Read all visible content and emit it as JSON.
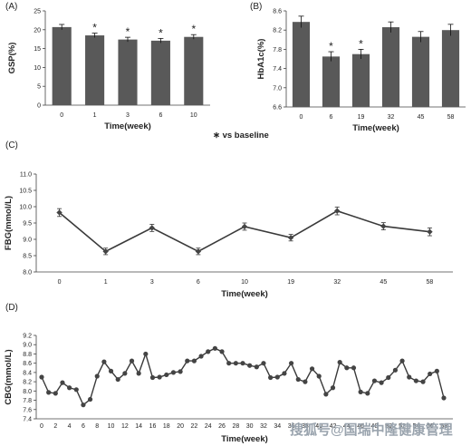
{
  "note": "∗ vs baseline",
  "watermark": "搜狐号@国瑞中隆健康管理",
  "chart_data": [
    {
      "panel": "(A)",
      "type": "bar",
      "xlabel": "Time(week)",
      "ylabel": "GSP(%)",
      "categories": [
        "0",
        "1",
        "3",
        "6",
        "10"
      ],
      "values": [
        20.7,
        18.5,
        17.4,
        17.1,
        18.1
      ],
      "errors": [
        0.7,
        0.6,
        0.6,
        0.6,
        0.6
      ],
      "significance": [
        "",
        "*",
        "*",
        "*",
        "*"
      ],
      "ylim": [
        0,
        25
      ],
      "yticks": [
        "0",
        "5",
        "10",
        "15",
        "20",
        "25"
      ]
    },
    {
      "panel": "(B)",
      "type": "bar",
      "xlabel": "Time(week)",
      "ylabel": "HbA1c(%)",
      "categories": [
        "0",
        "6",
        "19",
        "32",
        "45",
        "58"
      ],
      "values": [
        8.37,
        7.65,
        7.7,
        8.26,
        8.06,
        8.2
      ],
      "errors": [
        0.12,
        0.1,
        0.1,
        0.11,
        0.11,
        0.12
      ],
      "significance": [
        "",
        "*",
        "*",
        "",
        "",
        ""
      ],
      "ylim": [
        6.6,
        8.6
      ],
      "yticks": [
        "6.6",
        "7.0",
        "7.4",
        "7.8",
        "8.2",
        "8.6"
      ]
    },
    {
      "panel": "(C)",
      "type": "line",
      "xlabel": "Time(week)",
      "ylabel": "FBG(mmol/L)",
      "categories": [
        "0",
        "1",
        "3",
        "6",
        "10",
        "19",
        "32",
        "45",
        "58"
      ],
      "values": [
        9.82,
        8.63,
        9.35,
        8.63,
        9.39,
        9.05,
        9.87,
        9.4,
        9.23
      ],
      "errors": [
        0.12,
        0.1,
        0.11,
        0.1,
        0.11,
        0.1,
        0.12,
        0.11,
        0.12
      ],
      "ylim": [
        8.0,
        11.0
      ],
      "yticks": [
        "8.0",
        "8.5",
        "9.0",
        "9.5",
        "10.0",
        "10.5",
        "11.0"
      ]
    },
    {
      "panel": "(D)",
      "type": "line",
      "xlabel": "Time(week)",
      "ylabel": "CBG(mmol/L)",
      "x": [
        0,
        1,
        2,
        3,
        4,
        5,
        6,
        7,
        8,
        9,
        10,
        11,
        12,
        13,
        14,
        15,
        16,
        17,
        18,
        19,
        20,
        21,
        22,
        23,
        24,
        25,
        26,
        27,
        28,
        29,
        30,
        31,
        32,
        33,
        34,
        35,
        36,
        37,
        38,
        39,
        40,
        41,
        42,
        43,
        44,
        45,
        46,
        47,
        48,
        49,
        50,
        51,
        52,
        53,
        54,
        55,
        56,
        57,
        58
      ],
      "values": [
        8.3,
        7.97,
        7.95,
        8.18,
        8.07,
        8.03,
        7.7,
        7.82,
        8.32,
        8.63,
        8.43,
        8.25,
        8.38,
        8.65,
        8.38,
        8.8,
        8.29,
        8.3,
        8.35,
        8.4,
        8.42,
        8.65,
        8.65,
        8.75,
        8.85,
        8.92,
        8.85,
        8.6,
        8.6,
        8.6,
        8.55,
        8.52,
        8.6,
        8.29,
        8.3,
        8.38,
        8.6,
        8.25,
        8.2,
        8.48,
        8.32,
        7.93,
        8.07,
        8.62,
        8.5,
        8.5,
        7.98,
        7.95,
        8.22,
        8.18,
        8.29,
        8.45,
        8.65,
        8.3,
        8.22,
        8.2,
        8.37,
        8.43,
        7.85
      ],
      "ylim": [
        7.4,
        9.2
      ],
      "yticks": [
        "7.4",
        "7.6",
        "7.8",
        "8.0",
        "8.2",
        "8.4",
        "8.6",
        "8.8",
        "9.0",
        "9.2"
      ],
      "xticks": [
        "0",
        "2",
        "4",
        "6",
        "8",
        "10",
        "12",
        "14",
        "16",
        "18",
        "20",
        "22",
        "24",
        "26",
        "28",
        "30",
        "32",
        "34",
        "36",
        "38",
        "40",
        "42",
        "44",
        "46",
        "48",
        "50",
        "52",
        "54",
        "56",
        "58"
      ]
    }
  ]
}
